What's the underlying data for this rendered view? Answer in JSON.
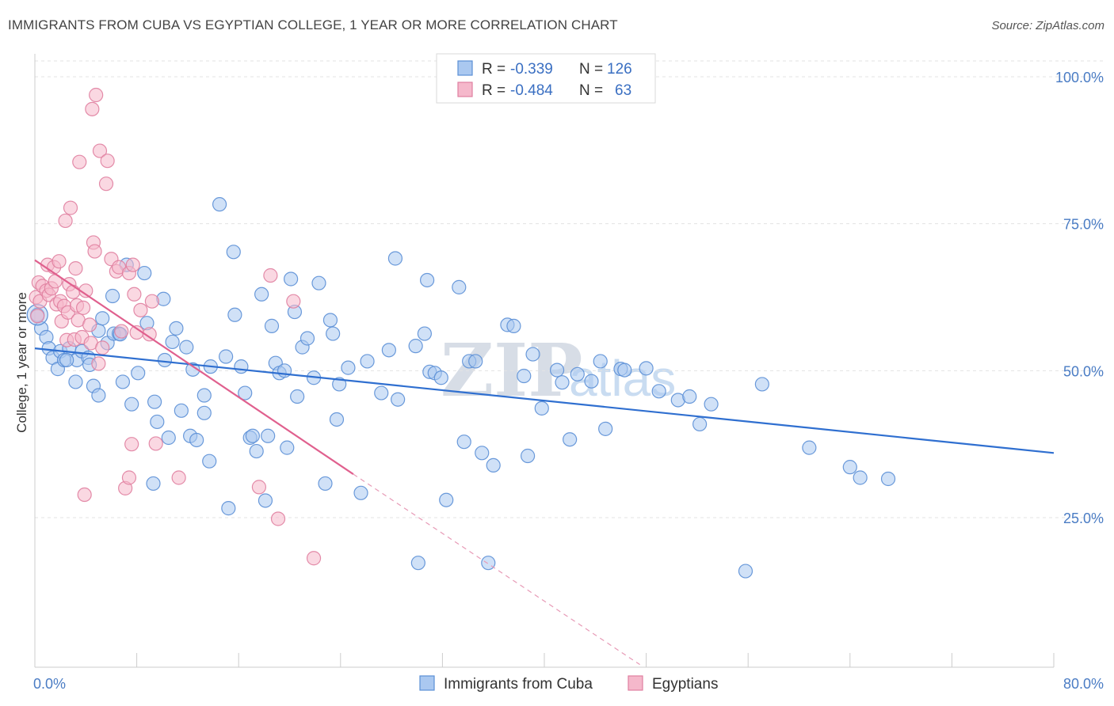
{
  "header": {
    "title": "IMMIGRANTS FROM CUBA VS EGYPTIAN COLLEGE, 1 YEAR OR MORE CORRELATION CHART",
    "source": "Source: ZipAtlas.com"
  },
  "watermark": {
    "zip": "ZIP",
    "atlas": "atlas"
  },
  "legend_top": {
    "rows": [
      {
        "r_label": "R =",
        "r_value": "-0.339",
        "n_label": "N =",
        "n_value": "126",
        "color": "#aac8f0",
        "edge": "#5b8fd6"
      },
      {
        "r_label": "R =",
        "r_value": "-0.484",
        "n_label": "N =",
        "n_value": "63",
        "color": "#f5b8cb",
        "edge": "#e07fa0"
      }
    ]
  },
  "legend_bottom": [
    {
      "label": "Immigrants from Cuba",
      "color": "#aac8f0",
      "edge": "#5b8fd6"
    },
    {
      "label": "Egyptians",
      "color": "#f5b8cb",
      "edge": "#e07fa0"
    }
  ],
  "chart_data": {
    "type": "scatter",
    "title": "IMMIGRANTS FROM CUBA VS EGYPTIAN COLLEGE, 1 YEAR OR MORE CORRELATION CHART",
    "xlabel": "",
    "ylabel": "College, 1 year or more",
    "xlim": [
      0,
      80
    ],
    "ylim": [
      0,
      105
    ],
    "x_tick_labels": {
      "left": "0.0%",
      "right": "80.0%"
    },
    "y_ticks": [
      {
        "value": 100,
        "label": "100.0%"
      },
      {
        "value": 75,
        "label": "75.0%"
      },
      {
        "value": 50,
        "label": "50.0%"
      },
      {
        "value": 25,
        "label": "25.0%"
      }
    ],
    "grid": true,
    "series": [
      {
        "name": "Immigrants from Cuba",
        "color": "#5b8fd6",
        "fill": "#aac8f0",
        "trend": {
          "x0": 0,
          "y0": 53.8,
          "x1": 80,
          "y1": 36.0
        },
        "points": [
          [
            0.2,
            59.5
          ],
          [
            0.5,
            57.2
          ],
          [
            0.9,
            55.7
          ],
          [
            1.1,
            53.8
          ],
          [
            1.4,
            52.2
          ],
          [
            1.8,
            50.3
          ],
          [
            2.0,
            53.3
          ],
          [
            2.3,
            51.8
          ],
          [
            2.7,
            53.8
          ],
          [
            3.2,
            48.1
          ],
          [
            3.3,
            51.8
          ],
          [
            3.7,
            53.3
          ],
          [
            4.2,
            52.2
          ],
          [
            4.3,
            51.0
          ],
          [
            4.6,
            47.4
          ],
          [
            5.0,
            45.8
          ],
          [
            5.0,
            56.8
          ],
          [
            5.3,
            58.9
          ],
          [
            5.7,
            54.7
          ],
          [
            6.1,
            62.7
          ],
          [
            6.2,
            56.3
          ],
          [
            6.6,
            56.3
          ],
          [
            6.9,
            48.1
          ],
          [
            7.2,
            68.0
          ],
          [
            7.6,
            44.3
          ],
          [
            8.1,
            49.6
          ],
          [
            8.6,
            66.6
          ],
          [
            8.8,
            58.1
          ],
          [
            9.3,
            30.8
          ],
          [
            9.4,
            44.7
          ],
          [
            9.6,
            41.3
          ],
          [
            10.1,
            62.2
          ],
          [
            10.2,
            51.8
          ],
          [
            10.5,
            38.6
          ],
          [
            10.8,
            54.9
          ],
          [
            11.1,
            57.2
          ],
          [
            11.5,
            43.2
          ],
          [
            11.9,
            54.0
          ],
          [
            12.2,
            38.9
          ],
          [
            12.4,
            50.2
          ],
          [
            12.7,
            38.2
          ],
          [
            13.3,
            42.8
          ],
          [
            13.3,
            45.8
          ],
          [
            13.7,
            34.6
          ],
          [
            13.8,
            50.7
          ],
          [
            14.5,
            78.3
          ],
          [
            15.0,
            52.4
          ],
          [
            15.2,
            26.6
          ],
          [
            15.6,
            70.2
          ],
          [
            15.7,
            59.5
          ],
          [
            16.2,
            50.7
          ],
          [
            16.5,
            46.2
          ],
          [
            16.9,
            38.6
          ],
          [
            17.1,
            38.9
          ],
          [
            17.4,
            36.3
          ],
          [
            17.8,
            63.0
          ],
          [
            18.1,
            27.9
          ],
          [
            18.3,
            38.9
          ],
          [
            18.6,
            57.6
          ],
          [
            18.9,
            51.3
          ],
          [
            19.2,
            49.6
          ],
          [
            19.6,
            50.0
          ],
          [
            19.8,
            36.9
          ],
          [
            20.1,
            65.6
          ],
          [
            20.4,
            60.0
          ],
          [
            20.6,
            45.6
          ],
          [
            21.0,
            54.0
          ],
          [
            21.4,
            55.5
          ],
          [
            21.9,
            48.8
          ],
          [
            22.3,
            64.9
          ],
          [
            22.8,
            30.8
          ],
          [
            23.2,
            58.6
          ],
          [
            23.4,
            56.3
          ],
          [
            23.7,
            41.7
          ],
          [
            23.9,
            47.7
          ],
          [
            24.6,
            50.5
          ],
          [
            25.6,
            29.2
          ],
          [
            26.1,
            51.6
          ],
          [
            27.2,
            46.2
          ],
          [
            27.8,
            53.5
          ],
          [
            28.3,
            69.1
          ],
          [
            28.5,
            45.1
          ],
          [
            29.9,
            54.2
          ],
          [
            30.1,
            17.3
          ],
          [
            30.8,
            65.4
          ],
          [
            30.6,
            56.3
          ],
          [
            31.0,
            49.8
          ],
          [
            31.4,
            49.6
          ],
          [
            31.9,
            48.8
          ],
          [
            32.3,
            28.0
          ],
          [
            33.3,
            64.2
          ],
          [
            33.7,
            37.9
          ],
          [
            34.1,
            51.6
          ],
          [
            34.6,
            51.6
          ],
          [
            35.1,
            36.0
          ],
          [
            35.6,
            17.3
          ],
          [
            36.0,
            33.9
          ],
          [
            37.1,
            57.8
          ],
          [
            37.6,
            57.6
          ],
          [
            38.4,
            49.1
          ],
          [
            38.7,
            35.5
          ],
          [
            39.1,
            52.8
          ],
          [
            39.8,
            43.6
          ],
          [
            41.0,
            50.1
          ],
          [
            41.4,
            48.0
          ],
          [
            42.0,
            38.3
          ],
          [
            42.6,
            49.4
          ],
          [
            43.7,
            48.2
          ],
          [
            44.4,
            51.6
          ],
          [
            44.8,
            40.1
          ],
          [
            46.0,
            50.3
          ],
          [
            46.3,
            50.1
          ],
          [
            48.0,
            50.4
          ],
          [
            49.0,
            46.5
          ],
          [
            50.5,
            45.0
          ],
          [
            51.4,
            45.6
          ],
          [
            52.2,
            40.9
          ],
          [
            53.1,
            44.3
          ],
          [
            55.8,
            15.9
          ],
          [
            57.1,
            47.7
          ],
          [
            60.8,
            36.9
          ],
          [
            64.0,
            33.6
          ],
          [
            64.8,
            31.8
          ],
          [
            67.0,
            31.6
          ],
          [
            2.5,
            51.8
          ],
          [
            6.7,
            56.2
          ]
        ]
      },
      {
        "name": "Egyptians",
        "color": "#e07fa0",
        "fill": "#f5b8cb",
        "trend": {
          "x0": 0,
          "y0": 68.8,
          "x1": 25,
          "y1": 32.4,
          "x_dash_end": 47.5,
          "y_dash_end": 0
        },
        "points": [
          [
            0.1,
            62.5
          ],
          [
            0.2,
            59.3
          ],
          [
            0.3,
            65.0
          ],
          [
            0.4,
            61.8
          ],
          [
            0.6,
            64.4
          ],
          [
            0.9,
            63.6
          ],
          [
            1.0,
            68.0
          ],
          [
            1.1,
            62.9
          ],
          [
            1.3,
            64.0
          ],
          [
            1.5,
            67.6
          ],
          [
            1.6,
            65.2
          ],
          [
            1.7,
            61.3
          ],
          [
            1.9,
            68.6
          ],
          [
            2.0,
            61.8
          ],
          [
            2.1,
            58.4
          ],
          [
            2.3,
            61.0
          ],
          [
            2.4,
            75.5
          ],
          [
            2.5,
            55.2
          ],
          [
            2.6,
            59.9
          ],
          [
            2.7,
            64.7
          ],
          [
            2.8,
            77.7
          ],
          [
            3.0,
            63.4
          ],
          [
            3.1,
            55.3
          ],
          [
            3.2,
            67.4
          ],
          [
            3.3,
            61.1
          ],
          [
            3.4,
            58.6
          ],
          [
            3.5,
            85.5
          ],
          [
            3.7,
            55.7
          ],
          [
            3.8,
            60.7
          ],
          [
            3.9,
            28.9
          ],
          [
            4.0,
            63.6
          ],
          [
            4.3,
            57.8
          ],
          [
            4.4,
            54.7
          ],
          [
            4.5,
            94.5
          ],
          [
            4.6,
            71.8
          ],
          [
            4.7,
            70.3
          ],
          [
            4.8,
            96.9
          ],
          [
            5.0,
            51.2
          ],
          [
            5.1,
            87.4
          ],
          [
            5.3,
            53.9
          ],
          [
            5.6,
            81.8
          ],
          [
            5.7,
            85.7
          ],
          [
            6.0,
            69.0
          ],
          [
            6.4,
            66.9
          ],
          [
            6.6,
            67.6
          ],
          [
            6.8,
            56.7
          ],
          [
            7.1,
            30.0
          ],
          [
            7.4,
            31.8
          ],
          [
            7.4,
            66.6
          ],
          [
            7.6,
            37.5
          ],
          [
            7.7,
            68.0
          ],
          [
            7.8,
            63.0
          ],
          [
            8.0,
            56.5
          ],
          [
            8.3,
            60.3
          ],
          [
            9.0,
            56.2
          ],
          [
            9.2,
            61.8
          ],
          [
            11.3,
            31.8
          ],
          [
            17.6,
            30.2
          ],
          [
            18.5,
            66.2
          ],
          [
            19.1,
            24.8
          ],
          [
            20.3,
            61.8
          ],
          [
            21.9,
            18.1
          ],
          [
            9.5,
            37.6
          ]
        ]
      }
    ]
  }
}
